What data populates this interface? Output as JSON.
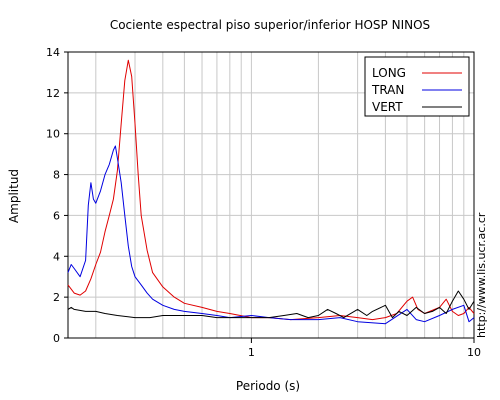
{
  "chart_data": {
    "type": "line",
    "title": "Cociente espectral piso superior/inferior  HOSP NINOS",
    "xlabel": "Periodo (s)",
    "ylabel": "Amplitud",
    "xscale": "log",
    "xlim": [
      0.15,
      10
    ],
    "ylim": [
      0,
      14
    ],
    "x_ticks": [
      1,
      10
    ],
    "x_tick_labels": [
      "1",
      "10"
    ],
    "y_ticks": [
      0,
      2,
      4,
      6,
      8,
      10,
      12,
      14
    ],
    "y_tick_labels": [
      "0",
      "2",
      "4",
      "6",
      "8",
      "10",
      "12",
      "14"
    ],
    "grid": true,
    "legend_position": "top-right",
    "series": [
      {
        "name": "LONG",
        "color": "#e00000",
        "points": [
          [
            0.15,
            2.6
          ],
          [
            0.16,
            2.2
          ],
          [
            0.17,
            2.1
          ],
          [
            0.18,
            2.3
          ],
          [
            0.19,
            2.9
          ],
          [
            0.2,
            3.6
          ],
          [
            0.21,
            4.2
          ],
          [
            0.22,
            5.2
          ],
          [
            0.23,
            6.0
          ],
          [
            0.24,
            6.8
          ],
          [
            0.25,
            8.2
          ],
          [
            0.26,
            10.5
          ],
          [
            0.27,
            12.6
          ],
          [
            0.28,
            13.6
          ],
          [
            0.29,
            12.8
          ],
          [
            0.3,
            10.5
          ],
          [
            0.31,
            8.0
          ],
          [
            0.32,
            6.0
          ],
          [
            0.34,
            4.3
          ],
          [
            0.36,
            3.2
          ],
          [
            0.4,
            2.5
          ],
          [
            0.45,
            2.0
          ],
          [
            0.5,
            1.7
          ],
          [
            0.6,
            1.5
          ],
          [
            0.7,
            1.3
          ],
          [
            0.8,
            1.2
          ],
          [
            1.0,
            1.0
          ],
          [
            1.2,
            1.0
          ],
          [
            1.5,
            0.9
          ],
          [
            2.0,
            1.0
          ],
          [
            2.5,
            1.1
          ],
          [
            3.0,
            1.0
          ],
          [
            3.5,
            0.9
          ],
          [
            4.0,
            1.0
          ],
          [
            4.5,
            1.2
          ],
          [
            5.0,
            1.8
          ],
          [
            5.3,
            2.0
          ],
          [
            5.6,
            1.4
          ],
          [
            6.0,
            1.2
          ],
          [
            7.0,
            1.5
          ],
          [
            7.5,
            1.9
          ],
          [
            8.0,
            1.3
          ],
          [
            8.5,
            1.1
          ],
          [
            9.0,
            1.2
          ],
          [
            9.5,
            1.5
          ],
          [
            10.0,
            1.2
          ]
        ]
      },
      {
        "name": "TRAN",
        "color": "#0000e0",
        "points": [
          [
            0.15,
            3.2
          ],
          [
            0.155,
            3.6
          ],
          [
            0.16,
            3.4
          ],
          [
            0.17,
            3.0
          ],
          [
            0.18,
            3.8
          ],
          [
            0.185,
            6.5
          ],
          [
            0.19,
            7.6
          ],
          [
            0.195,
            6.8
          ],
          [
            0.2,
            6.6
          ],
          [
            0.21,
            7.2
          ],
          [
            0.22,
            8.0
          ],
          [
            0.23,
            8.5
          ],
          [
            0.24,
            9.2
          ],
          [
            0.245,
            9.4
          ],
          [
            0.25,
            8.8
          ],
          [
            0.26,
            7.6
          ],
          [
            0.27,
            6.0
          ],
          [
            0.28,
            4.5
          ],
          [
            0.29,
            3.5
          ],
          [
            0.3,
            3.0
          ],
          [
            0.32,
            2.6
          ],
          [
            0.34,
            2.2
          ],
          [
            0.36,
            1.9
          ],
          [
            0.4,
            1.6
          ],
          [
            0.45,
            1.4
          ],
          [
            0.5,
            1.3
          ],
          [
            0.6,
            1.2
          ],
          [
            0.7,
            1.1
          ],
          [
            0.8,
            1.0
          ],
          [
            1.0,
            1.1
          ],
          [
            1.2,
            1.0
          ],
          [
            1.5,
            0.9
          ],
          [
            2.0,
            0.9
          ],
          [
            2.5,
            1.0
          ],
          [
            3.0,
            0.8
          ],
          [
            4.0,
            0.7
          ],
          [
            5.0,
            1.4
          ],
          [
            5.5,
            0.9
          ],
          [
            6.0,
            0.8
          ],
          [
            7.0,
            1.1
          ],
          [
            8.0,
            1.4
          ],
          [
            9.0,
            1.6
          ],
          [
            9.5,
            0.8
          ],
          [
            10.0,
            1.0
          ]
        ]
      },
      {
        "name": "VERT",
        "color": "#000000",
        "points": [
          [
            0.15,
            1.4
          ],
          [
            0.155,
            1.5
          ],
          [
            0.16,
            1.4
          ],
          [
            0.18,
            1.3
          ],
          [
            0.2,
            1.3
          ],
          [
            0.22,
            1.2
          ],
          [
            0.25,
            1.1
          ],
          [
            0.3,
            1.0
          ],
          [
            0.35,
            1.0
          ],
          [
            0.4,
            1.1
          ],
          [
            0.5,
            1.1
          ],
          [
            0.6,
            1.1
          ],
          [
            0.7,
            1.0
          ],
          [
            0.8,
            1.0
          ],
          [
            1.0,
            1.0
          ],
          [
            1.2,
            1.0
          ],
          [
            1.4,
            1.1
          ],
          [
            1.6,
            1.2
          ],
          [
            1.8,
            1.0
          ],
          [
            2.0,
            1.1
          ],
          [
            2.2,
            1.4
          ],
          [
            2.4,
            1.2
          ],
          [
            2.6,
            1.0
          ],
          [
            3.0,
            1.4
          ],
          [
            3.3,
            1.1
          ],
          [
            3.5,
            1.3
          ],
          [
            4.0,
            1.6
          ],
          [
            4.3,
            1.0
          ],
          [
            4.6,
            1.3
          ],
          [
            5.0,
            1.1
          ],
          [
            5.5,
            1.5
          ],
          [
            6.0,
            1.2
          ],
          [
            6.5,
            1.3
          ],
          [
            7.0,
            1.5
          ],
          [
            7.5,
            1.2
          ],
          [
            8.0,
            1.8
          ],
          [
            8.5,
            2.3
          ],
          [
            9.0,
            1.9
          ],
          [
            9.5,
            1.4
          ],
          [
            10.0,
            1.8
          ]
        ]
      }
    ]
  },
  "side_text": "http://www.lis.ucr.ac.cr"
}
